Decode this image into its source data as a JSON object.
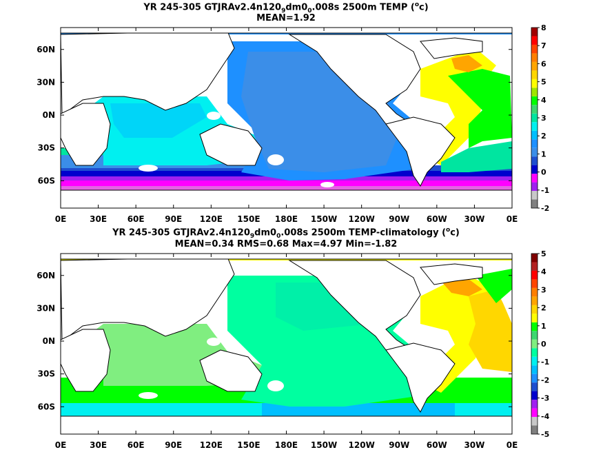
{
  "panels": [
    {
      "title_a": "YR 245-305 GTJRAv2.4n120",
      "title_sub1": "9",
      "title_b": "dm0",
      "title_sub2": "0",
      "title_c": ".008s 2500m TEMP (",
      "title_sup": "o",
      "title_d": "c)",
      "stats": "MEAN=1.92",
      "colorbar": [
        "8",
        "7",
        "6",
        "5",
        "4",
        "3",
        "2",
        "1",
        "0",
        "-1",
        "-2"
      ]
    },
    {
      "title_a": "YR 245-305 GTJRAv2.4n120",
      "title_sub1": "9",
      "title_b": "dm0",
      "title_sub2": "0",
      "title_c": ".008s 2500m TEMP-climatology (",
      "title_sup": "o",
      "title_d": "c)",
      "stats": "MEAN=0.34   RMS=0.68   Max=4.97   Min=-1.82",
      "colorbar": [
        "5",
        "4",
        "3",
        "2",
        "1",
        "0",
        "-1",
        "-2",
        "-3",
        "-4",
        "-5"
      ]
    }
  ],
  "chart_data": [
    {
      "type": "heatmap",
      "title": "YR 245-305 GTJRAv2.4n120_9dm0_0.008s 2500m TEMP (oc)",
      "subtitle": "MEAN=1.92",
      "x_ticks": [
        "0E",
        "30E",
        "60E",
        "90E",
        "120E",
        "150E",
        "180E",
        "150W",
        "120W",
        "90W",
        "60W",
        "30W",
        "0E"
      ],
      "y_ticks": [
        "60N",
        "30N",
        "0N",
        "30S",
        "60S"
      ],
      "colorbar_range": [
        -2,
        8
      ],
      "colorbar_step": 0.5,
      "colormap": [
        "#808080",
        "#c8c8c8",
        "#a020f0",
        "#ff00ff",
        "#0000cd",
        "#1e4ecf",
        "#3b8ee8",
        "#1e90ff",
        "#00bfff",
        "#00f0f0",
        "#00e5a0",
        "#3cd770",
        "#00ff00",
        "#a0e600",
        "#ffff00",
        "#ffd700",
        "#ffa500",
        "#ff7f00",
        "#ff4500",
        "#ff0000",
        "#a00000"
      ],
      "regions": {
        "pacific": "about 1.5 to 2.0",
        "indian_ocean": "about 2.0 to 2.5",
        "north_atlantic": "about 3.5 to 5.0",
        "south_atlantic": "about 3.0 to 3.5",
        "southern_ocean": "about -1.5 to 0.5"
      }
    },
    {
      "type": "heatmap",
      "title": "YR 245-305 GTJRAv2.4n120_9dm0_0.008s 2500m TEMP-climatology (oc)",
      "subtitle": "MEAN=0.34   RMS=0.68   Max=4.97   Min=-1.82",
      "x_ticks": [
        "0E",
        "30E",
        "60E",
        "90E",
        "120E",
        "150E",
        "180E",
        "150W",
        "120W",
        "90W",
        "60W",
        "30W",
        "0E"
      ],
      "y_ticks": [
        "60N",
        "30N",
        "0N",
        "30S",
        "60S"
      ],
      "colorbar_range": [
        -5,
        5
      ],
      "colorbar_step": 0.5,
      "stats": {
        "mean": 0.34,
        "rms": 0.68,
        "max": 4.97,
        "min": -1.82
      },
      "colormap": [
        "#808080",
        "#c8c8c8",
        "#ff00ff",
        "#a020f0",
        "#0000cd",
        "#1e4ecf",
        "#1e90ff",
        "#00bfff",
        "#00f0f0",
        "#00ffa0",
        "#80ee80",
        "#3cd770",
        "#00ff00",
        "#ffff00",
        "#ffd700",
        "#ffa500",
        "#ff7f00",
        "#ff4500",
        "#ff0000",
        "#b22222",
        "#800000"
      ],
      "regions": {
        "pacific": "about -0.5 to 0",
        "indian_ocean": "about 0 to 0.5",
        "north_atlantic": "about 1.0 to 2.0",
        "south_atlantic": "about 0.5 to 1.5",
        "southern_ocean": "about -1.5 to 0.5"
      }
    }
  ]
}
